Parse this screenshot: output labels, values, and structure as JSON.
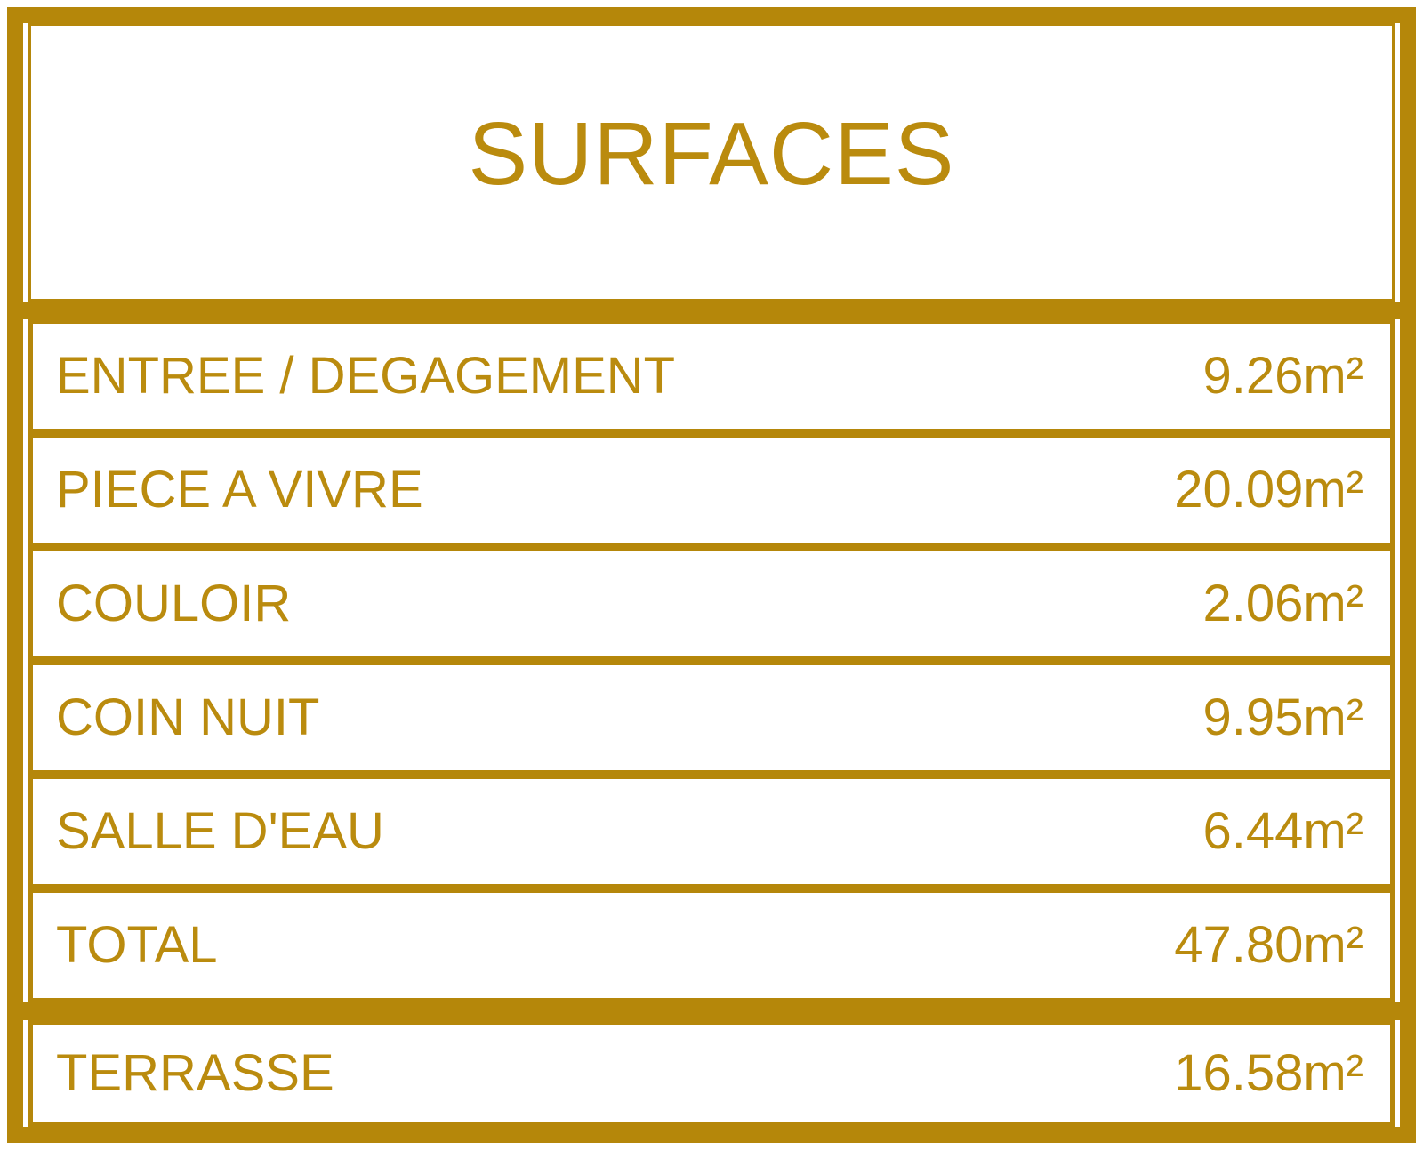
{
  "title": "SURFACES",
  "colors": {
    "accent": "#B5870A",
    "background": "#FFFFFF"
  },
  "unit": "m²",
  "rows": [
    {
      "label": "ENTREE / DEGAGEMENT",
      "value": "9.26m²",
      "value_num": 9.26
    },
    {
      "label": "PIECE A VIVRE",
      "value": "20.09m²",
      "value_num": 20.09
    },
    {
      "label": "COULOIR",
      "value": "2.06m²",
      "value_num": 2.06
    },
    {
      "label": "COIN NUIT",
      "value": "9.95m²",
      "value_num": 9.95
    },
    {
      "label": "SALLE D'EAU",
      "value": "6.44m²",
      "value_num": 6.44
    },
    {
      "label": "TOTAL",
      "value": "47.80m²",
      "value_num": 47.8
    }
  ],
  "footer_row": {
    "label": "TERRASSE",
    "value": "16.58m²",
    "value_num": 16.58
  }
}
